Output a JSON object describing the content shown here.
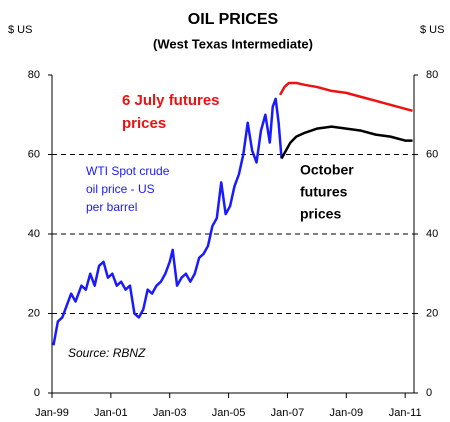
{
  "chart_data": {
    "type": "line",
    "title": "OIL PRICES",
    "subtitle": "(West Texas Intermediate)",
    "y_label": "$ US",
    "y2_label": "$ US",
    "xlim": [
      1999,
      2011.3
    ],
    "xticks": [
      {
        "value": 1999,
        "label": "Jan-99"
      },
      {
        "value": 2001,
        "label": "Jan-01"
      },
      {
        "value": 2003,
        "label": "Jan-03"
      },
      {
        "value": 2005,
        "label": "Jan-05"
      },
      {
        "value": 2007,
        "label": "Jan-07"
      },
      {
        "value": 2009,
        "label": "Jan-09"
      },
      {
        "value": 2011,
        "label": "Jan-11"
      }
    ],
    "ylim": [
      0,
      80
    ],
    "yticks": [
      0,
      20,
      40,
      60,
      80
    ],
    "y2lim": [
      0,
      80
    ],
    "y2ticks": [
      0,
      20,
      40,
      60,
      80
    ],
    "grid": true,
    "series": [
      {
        "color": "#1a1aff",
        "x": [
          1999.05,
          1999.2,
          1999.35,
          1999.5,
          1999.65,
          1999.8,
          2000.0,
          2000.15,
          2000.3,
          2000.45,
          2000.6,
          2000.75,
          2000.9,
          2001.05,
          2001.2,
          2001.35,
          2001.5,
          2001.65,
          2001.8,
          2001.95,
          2002.1,
          2002.25,
          2002.4,
          2002.55,
          2002.7,
          2002.85,
          2003.0,
          2003.1,
          2003.25,
          2003.4,
          2003.55,
          2003.7,
          2003.85,
          2004.0,
          2004.15,
          2004.3,
          2004.45,
          2004.6,
          2004.75,
          2004.9,
          2005.05,
          2005.2,
          2005.35,
          2005.5,
          2005.65,
          2005.8,
          2005.95,
          2006.1,
          2006.25,
          2006.4,
          2006.5,
          2006.6,
          2006.7,
          2006.8
        ],
        "values": [
          12,
          18,
          19,
          22,
          25,
          23,
          27,
          26,
          30,
          27,
          32,
          33,
          29,
          30,
          27,
          28,
          26,
          27,
          20,
          19,
          21,
          26,
          25,
          27,
          28,
          30,
          33,
          36,
          27,
          29,
          30,
          28,
          30,
          34,
          35,
          37,
          42,
          44,
          53,
          45,
          47,
          52,
          55,
          60,
          68,
          61,
          58,
          66,
          70,
          63,
          72,
          74,
          68,
          59
        ]
      },
      {
        "color": "#ee1111",
        "x": [
          2006.75,
          2006.9,
          2007.05,
          2007.3,
          2007.6,
          2008.0,
          2008.5,
          2009.0,
          2009.5,
          2010.0,
          2010.5,
          2011.0,
          2011.25
        ],
        "values": [
          75,
          77,
          78,
          78,
          77.5,
          77,
          76,
          75.5,
          74.5,
          73.5,
          72.5,
          71.5,
          71
        ]
      },
      {
        "color": "#000000",
        "x": [
          2006.8,
          2006.95,
          2007.1,
          2007.3,
          2007.6,
          2008.0,
          2008.5,
          2009.0,
          2009.5,
          2010.0,
          2010.5,
          2011.0,
          2011.25
        ],
        "values": [
          59,
          61,
          63,
          64.5,
          65.5,
          66.5,
          67,
          66.5,
          66,
          65,
          64.5,
          63.5,
          63.5
        ]
      }
    ],
    "annotations": [
      {
        "lines": [
          "6 July futures",
          "prices"
        ],
        "color": "#ee1111"
      },
      {
        "lines": [
          "October",
          "futures",
          "prices"
        ],
        "color": "#000000"
      },
      {
        "lines": [
          "WTI Spot crude",
          "oil price - US",
          "per barrel"
        ],
        "color": "#1a1aff"
      },
      {
        "lines": [
          "Source: RBNZ"
        ],
        "color": "#000000"
      }
    ]
  }
}
